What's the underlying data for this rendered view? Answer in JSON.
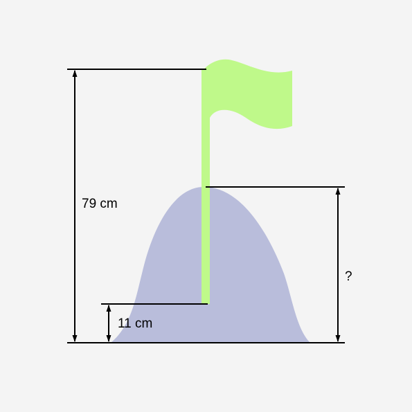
{
  "labels": {
    "total_height": "79 cm",
    "flag_embedded": "11 cm",
    "unknown_height": "?"
  },
  "colors": {
    "background": "#f4f4f4",
    "hill": "#b9bddb",
    "flag": "#bff98a",
    "lines": "#000000"
  }
}
